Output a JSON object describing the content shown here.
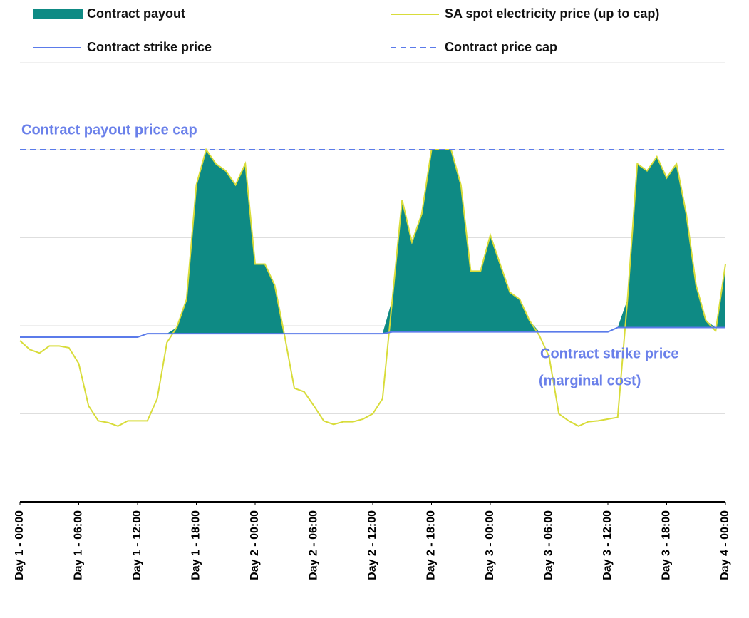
{
  "chart_data": {
    "type": "line",
    "annotations": [
      "Contract payout price cap",
      "Contract strike price",
      "(marginal cost)"
    ],
    "x": [
      0,
      1,
      2,
      3,
      4,
      5,
      6,
      7,
      8,
      9,
      10,
      11,
      12,
      13,
      14,
      15,
      16,
      17,
      18,
      19,
      20,
      21,
      22,
      23,
      24,
      25,
      26,
      27,
      28,
      29,
      30,
      31,
      32,
      33,
      34,
      35,
      36,
      37,
      38,
      39,
      40,
      41,
      42,
      43,
      44,
      45,
      46,
      47,
      48,
      49,
      50,
      51,
      52,
      53,
      54,
      55,
      56,
      57,
      58,
      59,
      60,
      61,
      62,
      63,
      64,
      65,
      66,
      67,
      68,
      69,
      70,
      71,
      72
    ],
    "xlim": [
      0,
      72
    ],
    "xticks": [
      {
        "value": 0,
        "label": "Day 1 - 00:00"
      },
      {
        "value": 6,
        "label": "Day 1 - 06:00"
      },
      {
        "value": 12,
        "label": "Day 1 - 12:00"
      },
      {
        "value": 18,
        "label": "Day 1 - 18:00"
      },
      {
        "value": 24,
        "label": "Day 2 - 00:00"
      },
      {
        "value": 30,
        "label": "Day 2 - 06:00"
      },
      {
        "value": 36,
        "label": "Day 2 - 12:00"
      },
      {
        "value": 42,
        "label": "Day 2 - 18:00"
      },
      {
        "value": 48,
        "label": "Day 3 - 00:00"
      },
      {
        "value": 54,
        "label": "Day 3 - 06:00"
      },
      {
        "value": 60,
        "label": "Day 3 - 12:00"
      },
      {
        "value": 66,
        "label": "Day 3 - 18:00"
      },
      {
        "value": 72,
        "label": "Day 4 - 00:00"
      }
    ],
    "ylim": [
      0,
      4
    ],
    "yticks": [
      0,
      1,
      2,
      3,
      4
    ],
    "grid": true,
    "series": [
      {
        "name": "Contract payout",
        "kind": "area",
        "color": "#0e8a84",
        "values": [
          0,
          0,
          0,
          0,
          0,
          0,
          0,
          0,
          0,
          0,
          0,
          0,
          0,
          0,
          0,
          0,
          0.07,
          0.39,
          1.69,
          2.09,
          1.93,
          1.85,
          1.69,
          1.93,
          0.79,
          0.79,
          0.55,
          0,
          0,
          0,
          0,
          0,
          0,
          0,
          0,
          0,
          0,
          0,
          0.37,
          1.5,
          1.02,
          1.34,
          2.07,
          2.07,
          2.07,
          1.67,
          0.69,
          0.69,
          1.1,
          0.77,
          0.45,
          0.37,
          0.13,
          0,
          0,
          0,
          0,
          0,
          0,
          0,
          0,
          0,
          0.32,
          1.86,
          1.78,
          1.94,
          1.7,
          1.86,
          1.29,
          0.48,
          0.08,
          0,
          0.72
        ]
      },
      {
        "name": "SA spot electricity price (up to cap)",
        "kind": "line",
        "color": "#d8dc3a",
        "values": [
          1.83,
          1.73,
          1.69,
          1.77,
          1.77,
          1.75,
          1.57,
          1.09,
          0.92,
          0.9,
          0.86,
          0.92,
          0.92,
          0.92,
          1.17,
          1.81,
          1.98,
          2.3,
          3.6,
          4,
          3.84,
          3.76,
          3.6,
          3.84,
          2.7,
          2.7,
          2.46,
          1.89,
          1.29,
          1.25,
          1.09,
          0.92,
          0.88,
          0.91,
          0.91,
          0.94,
          1.0,
          1.17,
          2.3,
          3.43,
          2.95,
          3.27,
          4,
          4,
          4,
          3.6,
          2.62,
          2.62,
          3.03,
          2.7,
          2.38,
          2.3,
          2.06,
          1.89,
          1.65,
          1.0,
          0.92,
          0.86,
          0.91,
          0.92,
          0.94,
          0.96,
          2.3,
          3.84,
          3.76,
          3.92,
          3.68,
          3.84,
          3.27,
          2.46,
          2.06,
          1.94,
          2.7
        ]
      },
      {
        "name": "Contract strike price",
        "kind": "line",
        "color": "#5b7bea",
        "values": [
          1.87,
          1.87,
          1.87,
          1.87,
          1.87,
          1.87,
          1.87,
          1.87,
          1.87,
          1.87,
          1.87,
          1.87,
          1.87,
          1.91,
          1.91,
          1.91,
          1.91,
          1.91,
          1.91,
          1.91,
          1.91,
          1.91,
          1.91,
          1.91,
          1.91,
          1.91,
          1.91,
          1.91,
          1.91,
          1.91,
          1.91,
          1.91,
          1.91,
          1.91,
          1.91,
          1.91,
          1.91,
          1.91,
          1.93,
          1.93,
          1.93,
          1.93,
          1.93,
          1.93,
          1.93,
          1.93,
          1.93,
          1.93,
          1.93,
          1.93,
          1.93,
          1.93,
          1.93,
          1.93,
          1.93,
          1.93,
          1.93,
          1.93,
          1.93,
          1.93,
          1.93,
          1.98,
          1.98,
          1.98,
          1.98,
          1.98,
          1.98,
          1.98,
          1.98,
          1.98,
          1.98,
          1.98,
          1.98
        ]
      }
    ],
    "cap": {
      "name": "Contract price cap",
      "color": "#5b7bea",
      "dashed": true,
      "value": 4
    }
  }
}
